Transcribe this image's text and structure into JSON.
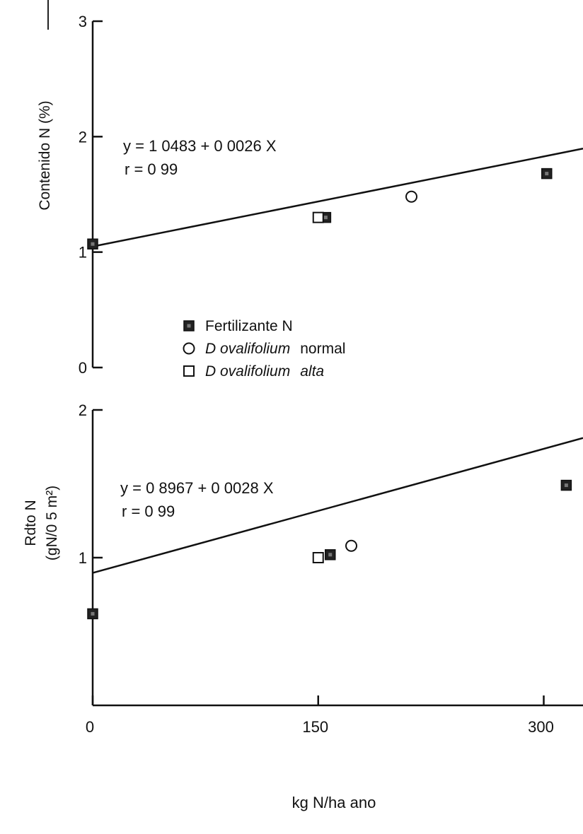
{
  "chart_data": [
    {
      "type": "scatter",
      "xlabel": "kg N/ha ano",
      "ylabel": "Contenido N (%)",
      "ylim": [
        0,
        3
      ],
      "xlim": [
        0,
        325
      ],
      "yticks": [
        "0",
        "1",
        "2",
        "3"
      ],
      "equation": "y = 1 0483 + 0 0026 X",
      "r": "r = 0 99",
      "fit": {
        "intercept": 1.0483,
        "slope": 0.0026
      },
      "series": [
        {
          "name": "Fertilizante N",
          "marker": "filled-square",
          "points": [
            [
              0,
              1.07
            ],
            [
              155,
              1.3
            ],
            [
              302,
              1.68
            ]
          ]
        },
        {
          "name": "D ovalifolium normal",
          "marker": "open-circle",
          "points": [
            [
              212,
              1.48
            ]
          ]
        },
        {
          "name": "D ovalifolium alta",
          "marker": "open-square",
          "points": [
            [
              150,
              1.3
            ]
          ]
        }
      ]
    },
    {
      "type": "scatter",
      "xlabel": "kg N/ha ano",
      "ylabel": [
        "Rdto N",
        "(gN/0 5 m²)"
      ],
      "ylim": [
        0,
        2
      ],
      "xlim": [
        0,
        325
      ],
      "yticks": [
        "1",
        "2"
      ],
      "equation": "y = 0 8967 + 0 0028 X",
      "r": "r = 0 99",
      "fit": {
        "intercept": 0.8967,
        "slope": 0.0028
      },
      "series": [
        {
          "name": "Fertilizante N",
          "marker": "filled-square",
          "points": [
            [
              0,
              0.62
            ],
            [
              158,
              1.02
            ],
            [
              315,
              1.49
            ]
          ]
        },
        {
          "name": "D ovalifolium normal",
          "marker": "open-circle",
          "points": [
            [
              172,
              1.08
            ]
          ]
        },
        {
          "name": "D ovalifolium alta",
          "marker": "open-square",
          "points": [
            [
              150,
              1.0
            ]
          ]
        }
      ]
    }
  ],
  "xticks": [
    "0",
    "150",
    "300"
  ],
  "xtick_values": [
    0,
    150,
    300
  ],
  "x_axis_label": "kg N/ha ano",
  "legend": [
    {
      "marker": "filled-square",
      "parts": [
        {
          "text": "Fertilizante N",
          "italic": false
        }
      ]
    },
    {
      "marker": "open-circle",
      "parts": [
        {
          "text": "D ovalifolium",
          "italic": true
        },
        {
          "text": "normal",
          "italic": false
        }
      ]
    },
    {
      "marker": "open-square",
      "parts": [
        {
          "text": "D ovalifolium",
          "italic": true
        },
        {
          "text": "alta",
          "italic": true
        }
      ]
    }
  ]
}
